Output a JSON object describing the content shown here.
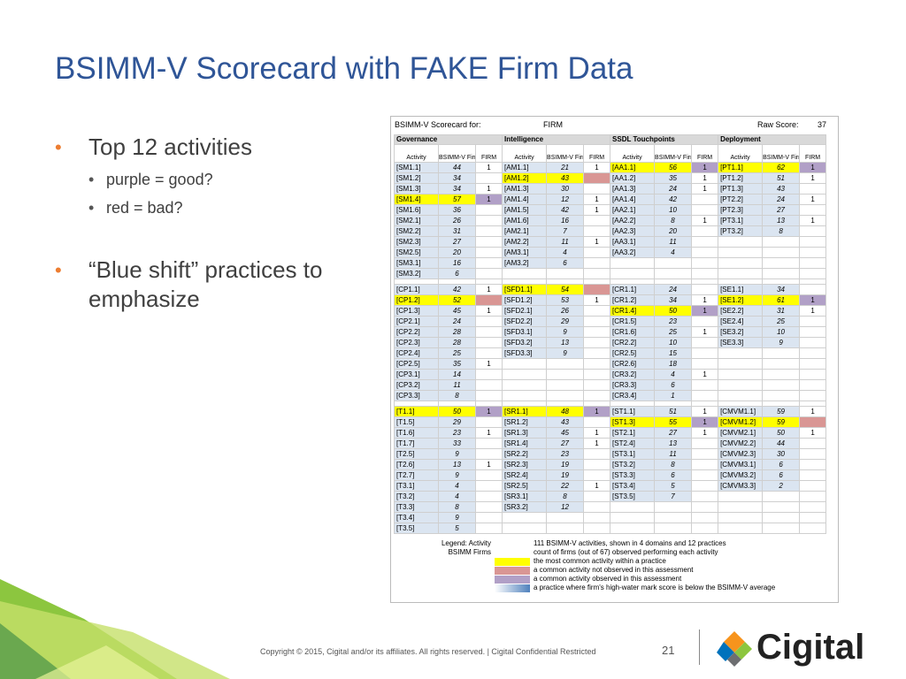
{
  "slide": {
    "title": "BSIMM-V Scorecard with FAKE Firm Data",
    "page_number": "21",
    "footer": "Copyright © 2015, Cigital and/or its affiliates. All rights reserved.   |   Cigital Confidential Restricted",
    "logo_text": "Cigital"
  },
  "bullets": [
    {
      "text": "Top 12 activities",
      "sub": [
        "purple = good?",
        "red = bad?"
      ]
    },
    {
      "text": "“Blue shift” practices to emphasize",
      "sub": []
    }
  ],
  "scorecard": {
    "header": {
      "label": "BSIMM-V Scorecard for:",
      "firm": "FIRM",
      "raw_label": "Raw Score:",
      "raw_value": "37"
    },
    "column_headers": [
      "Activity",
      "BSIMM-V Firms",
      "FIRM"
    ],
    "colors": {
      "y": "#ffff00",
      "r": "#d99694",
      "p": "#b1a0c7",
      "bl": "#dbe5f1"
    },
    "sections": [
      {
        "domains": [
          "Governance",
          "Intelligence",
          "SSDL Touchpoints",
          "Deployment"
        ],
        "header_row": true,
        "rows": [
          [
            [
              "[SM1.1]",
              "44",
              "1"
            ],
            [
              "[AM1.1]",
              "21",
              "1"
            ],
            [
              "[AA1.1]",
              "56",
              "1",
              "yp"
            ],
            [
              "[PT1.1]",
              "62",
              "1",
              "yp"
            ]
          ],
          [
            [
              "[SM1.2]",
              "34",
              ""
            ],
            [
              "[AM1.2]",
              "43",
              "",
              "yr"
            ],
            [
              "[AA1.2]",
              "35",
              "1"
            ],
            [
              "[PT1.2]",
              "51",
              "1"
            ]
          ],
          [
            [
              "[SM1.3]",
              "34",
              "1"
            ],
            [
              "[AM1.3]",
              "30",
              ""
            ],
            [
              "[AA1.3]",
              "24",
              "1"
            ],
            [
              "[PT1.3]",
              "43",
              ""
            ]
          ],
          [
            [
              "[SM1.4]",
              "57",
              "1",
              "yp"
            ],
            [
              "[AM1.4]",
              "12",
              "1"
            ],
            [
              "[AA1.4]",
              "42",
              ""
            ],
            [
              "[PT2.2]",
              "24",
              "1"
            ]
          ],
          [
            [
              "[SM1.6]",
              "36",
              ""
            ],
            [
              "[AM1.5]",
              "42",
              "1"
            ],
            [
              "[AA2.1]",
              "10",
              ""
            ],
            [
              "[PT2.3]",
              "27",
              ""
            ]
          ],
          [
            [
              "[SM2.1]",
              "26",
              ""
            ],
            [
              "[AM1.6]",
              "16",
              ""
            ],
            [
              "[AA2.2]",
              "8",
              "1"
            ],
            [
              "[PT3.1]",
              "13",
              "1"
            ]
          ],
          [
            [
              "[SM2.2]",
              "31",
              ""
            ],
            [
              "[AM2.1]",
              "7",
              ""
            ],
            [
              "[AA2.3]",
              "20",
              ""
            ],
            [
              "[PT3.2]",
              "8",
              ""
            ]
          ],
          [
            [
              "[SM2.3]",
              "27",
              ""
            ],
            [
              "[AM2.2]",
              "11",
              "1"
            ],
            [
              "[AA3.1]",
              "11",
              ""
            ],
            null
          ],
          [
            [
              "[SM2.5]",
              "20",
              ""
            ],
            [
              "[AM3.1]",
              "4",
              ""
            ],
            [
              "[AA3.2]",
              "4",
              ""
            ],
            null
          ],
          [
            [
              "[SM3.1]",
              "16",
              ""
            ],
            [
              "[AM3.2]",
              "6",
              ""
            ],
            null,
            null
          ],
          [
            [
              "[SM3.2]",
              "6",
              ""
            ],
            null,
            null,
            null
          ]
        ]
      },
      {
        "rows": [
          [
            [
              "[CP1.1]",
              "42",
              "1"
            ],
            [
              "[SFD1.1]",
              "54",
              "",
              "yr"
            ],
            [
              "[CR1.1]",
              "24",
              ""
            ],
            [
              "[SE1.1]",
              "34",
              ""
            ]
          ],
          [
            [
              "[CP1.2]",
              "52",
              "",
              "yr"
            ],
            [
              "[SFD1.2]",
              "53",
              "1"
            ],
            [
              "[CR1.2]",
              "34",
              "1"
            ],
            [
              "[SE1.2]",
              "61",
              "1",
              "yp"
            ]
          ],
          [
            [
              "[CP1.3]",
              "45",
              "1"
            ],
            [
              "[SFD2.1]",
              "26",
              ""
            ],
            [
              "[CR1.4]",
              "50",
              "1",
              "yp"
            ],
            [
              "[SE2.2]",
              "31",
              "1"
            ]
          ],
          [
            [
              "[CP2.1]",
              "24",
              ""
            ],
            [
              "[SFD2.2]",
              "29",
              ""
            ],
            [
              "[CR1.5]",
              "23",
              ""
            ],
            [
              "[SE2.4]",
              "25",
              ""
            ]
          ],
          [
            [
              "[CP2.2]",
              "28",
              ""
            ],
            [
              "[SFD3.1]",
              "9",
              ""
            ],
            [
              "[CR1.6]",
              "25",
              "1"
            ],
            [
              "[SE3.2]",
              "10",
              ""
            ]
          ],
          [
            [
              "[CP2.3]",
              "28",
              ""
            ],
            [
              "[SFD3.2]",
              "13",
              ""
            ],
            [
              "[CR2.2]",
              "10",
              ""
            ],
            [
              "[SE3.3]",
              "9",
              ""
            ]
          ],
          [
            [
              "[CP2.4]",
              "25",
              ""
            ],
            [
              "[SFD3.3]",
              "9",
              ""
            ],
            [
              "[CR2.5]",
              "15",
              ""
            ],
            null
          ],
          [
            [
              "[CP2.5]",
              "35",
              "1"
            ],
            null,
            [
              "[CR2.6]",
              "18",
              ""
            ],
            null
          ],
          [
            [
              "[CP3.1]",
              "14",
              ""
            ],
            null,
            [
              "[CR3.2]",
              "4",
              "1"
            ],
            null
          ],
          [
            [
              "[CP3.2]",
              "11",
              ""
            ],
            null,
            [
              "[CR3.3]",
              "6",
              ""
            ],
            null
          ],
          [
            [
              "[CP3.3]",
              "8",
              ""
            ],
            null,
            [
              "[CR3.4]",
              "1",
              ""
            ],
            null
          ]
        ]
      },
      {
        "rows": [
          [
            [
              "[T1.1]",
              "50",
              "1",
              "yp"
            ],
            [
              "[SR1.1]",
              "48",
              "1",
              "yp"
            ],
            [
              "[ST1.1]",
              "51",
              "1"
            ],
            [
              "[CMVM1.1]",
              "59",
              "1"
            ]
          ],
          [
            [
              "[T1.5]",
              "29",
              ""
            ],
            [
              "[SR1.2]",
              "43",
              ""
            ],
            [
              "[ST1.3]",
              "55",
              "1",
              "yp"
            ],
            [
              "[CMVM1.2]",
              "59",
              "",
              "yr"
            ]
          ],
          [
            [
              "[T1.6]",
              "23",
              "1"
            ],
            [
              "[SR1.3]",
              "45",
              "1"
            ],
            [
              "[ST2.1]",
              "27",
              "1"
            ],
            [
              "[CMVM2.1]",
              "50",
              "1"
            ]
          ],
          [
            [
              "[T1.7]",
              "33",
              ""
            ],
            [
              "[SR1.4]",
              "27",
              "1"
            ],
            [
              "[ST2.4]",
              "13",
              ""
            ],
            [
              "[CMVM2.2]",
              "44",
              ""
            ]
          ],
          [
            [
              "[T2.5]",
              "9",
              ""
            ],
            [
              "[SR2.2]",
              "23",
              ""
            ],
            [
              "[ST3.1]",
              "11",
              ""
            ],
            [
              "[CMVM2.3]",
              "30",
              ""
            ]
          ],
          [
            [
              "[T2.6]",
              "13",
              "1"
            ],
            [
              "[SR2.3]",
              "19",
              ""
            ],
            [
              "[ST3.2]",
              "8",
              ""
            ],
            [
              "[CMVM3.1]",
              "6",
              ""
            ]
          ],
          [
            [
              "[T2.7]",
              "9",
              ""
            ],
            [
              "[SR2.4]",
              "19",
              ""
            ],
            [
              "[ST3.3]",
              "6",
              ""
            ],
            [
              "[CMVM3.2]",
              "6",
              ""
            ]
          ],
          [
            [
              "[T3.1]",
              "4",
              ""
            ],
            [
              "[SR2.5]",
              "22",
              "1"
            ],
            [
              "[ST3.4]",
              "5",
              ""
            ],
            [
              "[CMVM3.3]",
              "2",
              ""
            ]
          ],
          [
            [
              "[T3.2]",
              "4",
              ""
            ],
            [
              "[SR3.1]",
              "8",
              ""
            ],
            [
              "[ST3.5]",
              "7",
              ""
            ],
            null
          ],
          [
            [
              "[T3.3]",
              "8",
              ""
            ],
            [
              "[SR3.2]",
              "12",
              ""
            ],
            null,
            null
          ],
          [
            [
              "[T3.4]",
              "9",
              ""
            ],
            null,
            null,
            null
          ],
          [
            [
              "[T3.5]",
              "5",
              ""
            ],
            null,
            null,
            null
          ]
        ]
      }
    ],
    "legend": [
      {
        "key": "Legend:      Activity",
        "swatch": "",
        "text": "111 BSIMM-V activities, shown in 4 domains and 12 practices"
      },
      {
        "key": "BSIMM Firms",
        "swatch": "",
        "text": "count of firms (out of 67) observed performing each activity"
      },
      {
        "key": "",
        "swatch": "#ffff00",
        "text": "the most common activity within a practice"
      },
      {
        "key": "",
        "swatch": "#d99694",
        "text": "a common activity not observed in this assessment"
      },
      {
        "key": "",
        "swatch": "#b1a0c7",
        "text": "a common activity observed in this assessment"
      },
      {
        "key": "",
        "swatch": "linear-gradient(90deg,#ffffff,#4f81bd)",
        "text": "a practice where firm's high-water mark score is below the BSIMM-V average"
      }
    ]
  }
}
